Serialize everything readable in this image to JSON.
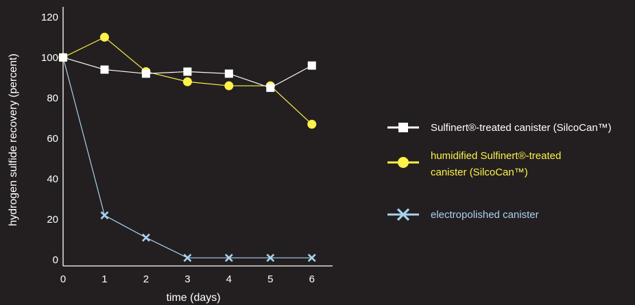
{
  "chart_data": {
    "type": "line",
    "xlabel": "time (days)",
    "ylabel": "hydrogen sulfide recovery (percent)",
    "x": [
      0,
      1,
      2,
      3,
      4,
      5,
      6
    ],
    "xlim": [
      0,
      6.5
    ],
    "ylim": [
      -3,
      125
    ],
    "x_ticks": [
      "0",
      "1",
      "2",
      "3",
      "4",
      "5",
      "6"
    ],
    "y_ticks": [
      "0",
      "20",
      "40",
      "60",
      "80",
      "100",
      "120"
    ],
    "grid": false,
    "legend_position": "right",
    "series": [
      {
        "name": "Sulfinert®-treated canister (SilcoCan™)",
        "name_lines": [
          "Sulfinert®-treated canister (SilcoCan™)"
        ],
        "marker": "square",
        "color": "#ffffff",
        "values": [
          100,
          94,
          92,
          93,
          92,
          85,
          96
        ]
      },
      {
        "name": "humidified Sulfinert®-treated canister (SilcoCan™)",
        "name_lines": [
          "humidified Sulfinert®-treated",
          "canister (SilcoCan™)"
        ],
        "marker": "circle",
        "color": "#fff14a",
        "values": [
          100,
          110,
          93,
          88,
          86,
          86,
          67
        ]
      },
      {
        "name": "electropolished canister",
        "name_lines": [
          "electropolished canister"
        ],
        "marker": "x",
        "color": "#a9d2ee",
        "values": [
          100,
          22,
          11,
          1,
          1,
          1,
          1
        ]
      }
    ]
  }
}
